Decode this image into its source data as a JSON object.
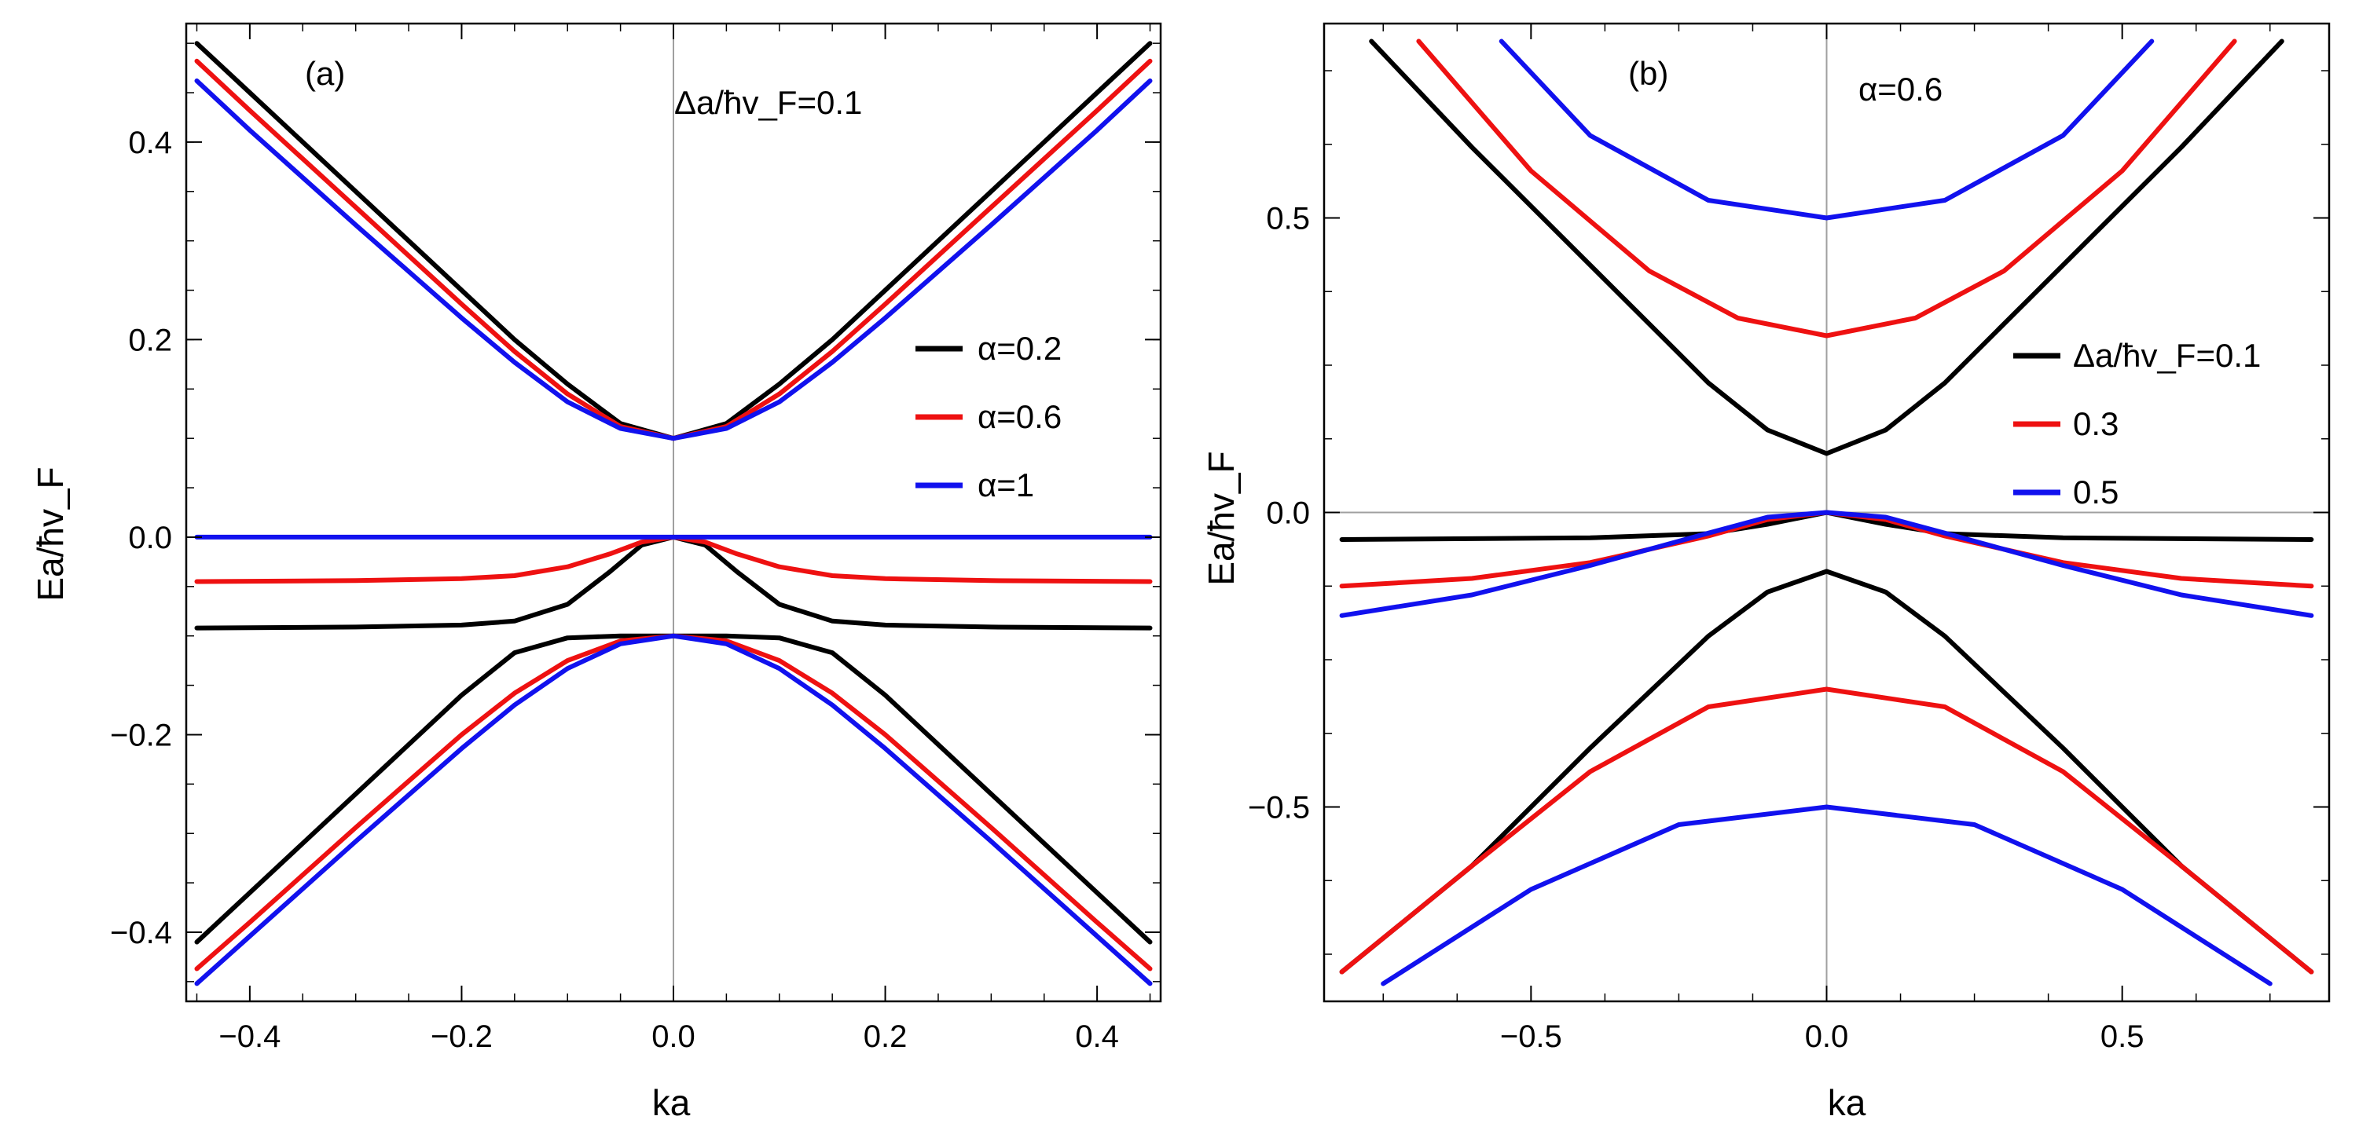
{
  "figure": {
    "panels": [
      {
        "label": "(a)",
        "annotation": "Δa/ħv_F=0.1",
        "xlabel": "ka",
        "ylabel": "Ea/ħv_F",
        "legend": [
          "α=0.2",
          "α=0.6",
          "α=1"
        ]
      },
      {
        "label": "(b)",
        "annotation": "α=0.6",
        "xlabel": "ka",
        "ylabel": "Ea/ħv_F",
        "legend": [
          "Δa/ħv_F=0.1",
          "0.3",
          "0.5"
        ]
      }
    ]
  },
  "chart_data": [
    {
      "type": "line",
      "panel": "(a)",
      "xlabel": "ka",
      "ylabel": "Ea/ħv_F",
      "xlim": [
        -0.46,
        0.46
      ],
      "ylim": [
        -0.47,
        0.52
      ],
      "xticks": [
        -0.4,
        -0.2,
        0.0,
        0.2,
        0.4
      ],
      "xtick_labels": [
        "-0.4",
        "-0.2",
        "0.0",
        "0.2",
        "0.4"
      ],
      "yticks": [
        -0.4,
        -0.2,
        0.0,
        0.2,
        0.4
      ],
      "ytick_labels": [
        "-0.4",
        "-0.2",
        "0.0",
        "0.2",
        "0.4"
      ],
      "grid": false,
      "legend_position": "right",
      "colors": [
        "#000000",
        "#ee1111",
        "#1111ee"
      ],
      "series": [
        {
          "name": "α=0.2",
          "color": "#000000",
          "branch": "upper",
          "x": [
            -0.45,
            -0.4,
            -0.3,
            -0.2,
            -0.15,
            -0.1,
            -0.05,
            0.0,
            0.05,
            0.1,
            0.15,
            0.2,
            0.3,
            0.4,
            0.45
          ],
          "y": [
            0.5,
            0.45,
            0.35,
            0.25,
            0.2,
            0.155,
            0.115,
            0.1,
            0.115,
            0.155,
            0.2,
            0.25,
            0.35,
            0.45,
            0.5
          ]
        },
        {
          "name": "α=0.6",
          "color": "#ee1111",
          "branch": "upper",
          "x": [
            -0.45,
            -0.4,
            -0.3,
            -0.2,
            -0.15,
            -0.1,
            -0.05,
            0.0,
            0.05,
            0.1,
            0.15,
            0.2,
            0.3,
            0.4,
            0.45
          ],
          "y": [
            0.482,
            0.432,
            0.334,
            0.236,
            0.188,
            0.145,
            0.112,
            0.1,
            0.112,
            0.145,
            0.188,
            0.236,
            0.334,
            0.432,
            0.482
          ]
        },
        {
          "name": "α=1",
          "color": "#1111ee",
          "branch": "upper",
          "x": [
            -0.45,
            -0.4,
            -0.3,
            -0.2,
            -0.15,
            -0.1,
            -0.05,
            0.0,
            0.05,
            0.1,
            0.15,
            0.2,
            0.3,
            0.4,
            0.45
          ],
          "y": [
            0.462,
            0.412,
            0.316,
            0.222,
            0.177,
            0.137,
            0.11,
            0.1,
            0.11,
            0.137,
            0.177,
            0.222,
            0.316,
            0.412,
            0.462
          ]
        },
        {
          "name": "α=0.2",
          "color": "#000000",
          "branch": "flat",
          "x": [
            -0.45,
            -0.3,
            -0.2,
            -0.15,
            -0.1,
            -0.06,
            -0.03,
            0.0,
            0.03,
            0.06,
            0.1,
            0.15,
            0.2,
            0.3,
            0.45
          ],
          "y": [
            -0.092,
            -0.091,
            -0.089,
            -0.085,
            -0.068,
            -0.035,
            -0.008,
            0.0,
            -0.008,
            -0.035,
            -0.068,
            -0.085,
            -0.089,
            -0.091,
            -0.092
          ]
        },
        {
          "name": "α=0.6",
          "color": "#ee1111",
          "branch": "flat",
          "x": [
            -0.45,
            -0.3,
            -0.2,
            -0.15,
            -0.1,
            -0.06,
            -0.03,
            0.0,
            0.03,
            0.06,
            0.1,
            0.15,
            0.2,
            0.3,
            0.45
          ],
          "y": [
            -0.045,
            -0.044,
            -0.042,
            -0.039,
            -0.03,
            -0.017,
            -0.005,
            0.0,
            -0.005,
            -0.017,
            -0.03,
            -0.039,
            -0.042,
            -0.044,
            -0.045
          ]
        },
        {
          "name": "α=1",
          "color": "#1111ee",
          "branch": "flat",
          "x": [
            -0.45,
            0.45
          ],
          "y": [
            0.0,
            0.0
          ]
        },
        {
          "name": "α=0.2",
          "color": "#000000",
          "branch": "lower",
          "x": [
            -0.45,
            -0.4,
            -0.3,
            -0.2,
            -0.15,
            -0.1,
            -0.05,
            0.0,
            0.05,
            0.1,
            0.15,
            0.2,
            0.3,
            0.4,
            0.45
          ],
          "y": [
            -0.41,
            -0.36,
            -0.26,
            -0.16,
            -0.117,
            -0.102,
            -0.1,
            -0.1,
            -0.1,
            -0.102,
            -0.117,
            -0.16,
            -0.26,
            -0.36,
            -0.41
          ]
        },
        {
          "name": "α=0.6",
          "color": "#ee1111",
          "branch": "lower",
          "x": [
            -0.45,
            -0.4,
            -0.3,
            -0.2,
            -0.15,
            -0.1,
            -0.05,
            0.0,
            0.05,
            0.1,
            0.15,
            0.2,
            0.3,
            0.4,
            0.45
          ],
          "y": [
            -0.437,
            -0.39,
            -0.294,
            -0.2,
            -0.158,
            -0.125,
            -0.105,
            -0.1,
            -0.105,
            -0.125,
            -0.158,
            -0.2,
            -0.294,
            -0.39,
            -0.437
          ]
        },
        {
          "name": "α=1",
          "color": "#1111ee",
          "branch": "lower",
          "x": [
            -0.45,
            -0.4,
            -0.3,
            -0.2,
            -0.15,
            -0.1,
            -0.05,
            0.0,
            0.05,
            0.1,
            0.15,
            0.2,
            0.3,
            0.4,
            0.45
          ],
          "y": [
            -0.452,
            -0.404,
            -0.308,
            -0.214,
            -0.17,
            -0.133,
            -0.108,
            -0.1,
            -0.108,
            -0.133,
            -0.17,
            -0.214,
            -0.308,
            -0.404,
            -0.452
          ]
        }
      ]
    },
    {
      "type": "line",
      "panel": "(b)",
      "xlabel": "ka",
      "ylabel": "Ea/ħv_F",
      "xlim": [
        -0.85,
        0.85
      ],
      "ylim": [
        -0.83,
        0.83
      ],
      "xticks": [
        -0.5,
        0.0,
        0.5
      ],
      "xtick_labels": [
        "-0.5",
        "0.0",
        "0.5"
      ],
      "yticks": [
        -0.5,
        0.0,
        0.5
      ],
      "ytick_labels": [
        "-0.5",
        "0.0",
        "0.5"
      ],
      "grid": false,
      "legend_position": "right",
      "colors": [
        "#000000",
        "#ee1111",
        "#1111ee"
      ],
      "series": [
        {
          "name": "Δa/ħv_F=0.1",
          "color": "#000000",
          "branch": "upper",
          "x": [
            -0.77,
            -0.6,
            -0.4,
            -0.2,
            -0.1,
            0.0,
            0.1,
            0.2,
            0.4,
            0.6,
            0.77
          ],
          "y": [
            0.8,
            0.62,
            0.42,
            0.22,
            0.14,
            0.1,
            0.14,
            0.22,
            0.42,
            0.62,
            0.8
          ]
        },
        {
          "name": "0.3",
          "color": "#ee1111",
          "branch": "upper",
          "x": [
            -0.69,
            -0.5,
            -0.3,
            -0.15,
            0.0,
            0.15,
            0.3,
            0.5,
            0.69
          ],
          "y": [
            0.8,
            0.58,
            0.41,
            0.33,
            0.3,
            0.33,
            0.41,
            0.58,
            0.8
          ]
        },
        {
          "name": "0.5",
          "color": "#1111ee",
          "branch": "upper",
          "x": [
            -0.55,
            -0.4,
            -0.2,
            0.0,
            0.2,
            0.4,
            0.55
          ],
          "y": [
            0.8,
            0.64,
            0.53,
            0.5,
            0.53,
            0.64,
            0.8
          ]
        },
        {
          "name": "Δa/ħv_F=0.1",
          "color": "#000000",
          "branch": "flat",
          "x": [
            -0.82,
            -0.4,
            -0.2,
            -0.1,
            0.0,
            0.1,
            0.2,
            0.4,
            0.82
          ],
          "y": [
            -0.046,
            -0.043,
            -0.036,
            -0.02,
            0.0,
            -0.02,
            -0.036,
            -0.043,
            -0.046
          ]
        },
        {
          "name": "0.3",
          "color": "#ee1111",
          "branch": "flat",
          "x": [
            -0.82,
            -0.6,
            -0.4,
            -0.2,
            -0.1,
            0.0,
            0.1,
            0.2,
            0.4,
            0.6,
            0.82
          ],
          "y": [
            -0.125,
            -0.112,
            -0.085,
            -0.04,
            -0.012,
            0.0,
            -0.012,
            -0.04,
            -0.085,
            -0.112,
            -0.125
          ]
        },
        {
          "name": "0.5",
          "color": "#1111ee",
          "branch": "flat",
          "x": [
            -0.82,
            -0.6,
            -0.4,
            -0.2,
            -0.1,
            0.0,
            0.1,
            0.2,
            0.4,
            0.6,
            0.82
          ],
          "y": [
            -0.175,
            -0.14,
            -0.09,
            -0.035,
            -0.008,
            0.0,
            -0.008,
            -0.035,
            -0.09,
            -0.14,
            -0.175
          ]
        },
        {
          "name": "Δa/ħv_F=0.1",
          "color": "#000000",
          "branch": "lower",
          "x": [
            -0.82,
            -0.6,
            -0.4,
            -0.2,
            -0.1,
            0.0,
            0.1,
            0.2,
            0.4,
            0.6,
            0.82
          ],
          "y": [
            -0.78,
            -0.6,
            -0.4,
            -0.21,
            -0.135,
            -0.1,
            -0.135,
            -0.21,
            -0.4,
            -0.6,
            -0.78
          ]
        },
        {
          "name": "0.3",
          "color": "#ee1111",
          "branch": "lower",
          "x": [
            -0.82,
            -0.6,
            -0.4,
            -0.2,
            0.0,
            0.2,
            0.4,
            0.6,
            0.82
          ],
          "y": [
            -0.78,
            -0.6,
            -0.44,
            -0.33,
            -0.3,
            -0.33,
            -0.44,
            -0.6,
            -0.78
          ]
        },
        {
          "name": "0.5",
          "color": "#1111ee",
          "branch": "lower",
          "x": [
            -0.75,
            -0.5,
            -0.25,
            0.0,
            0.25,
            0.5,
            0.75
          ],
          "y": [
            -0.8,
            -0.64,
            -0.53,
            -0.5,
            -0.53,
            -0.64,
            -0.8
          ]
        }
      ]
    }
  ]
}
